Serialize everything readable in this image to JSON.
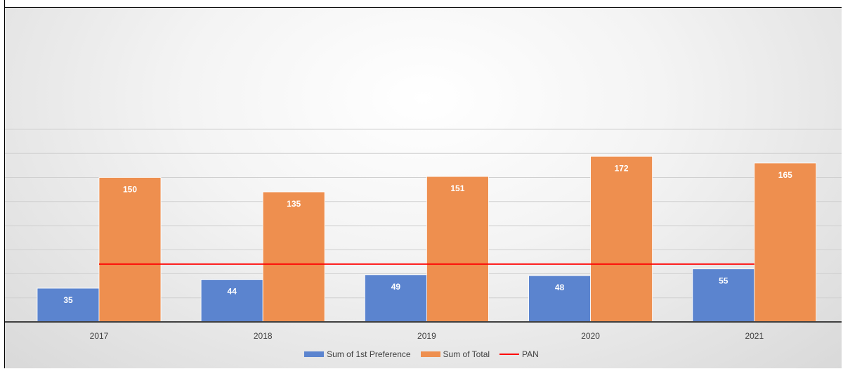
{
  "chart_data": {
    "type": "bar",
    "categories": [
      "2017",
      "2018",
      "2019",
      "2020",
      "2021"
    ],
    "series": [
      {
        "name": "Sum of 1st Preference",
        "type": "bar",
        "color": "#5b84cf",
        "values": [
          35,
          44,
          49,
          48,
          55
        ]
      },
      {
        "name": "Sum of Total",
        "type": "bar",
        "color": "#ee8f4f",
        "values": [
          150,
          135,
          151,
          172,
          165
        ]
      },
      {
        "name": "PAN",
        "type": "line",
        "color": "#ff0000",
        "values": [
          60,
          60,
          60,
          60,
          60
        ]
      }
    ],
    "ylim": [
      0,
      200
    ],
    "grid": true,
    "legend_position": "bottom"
  }
}
